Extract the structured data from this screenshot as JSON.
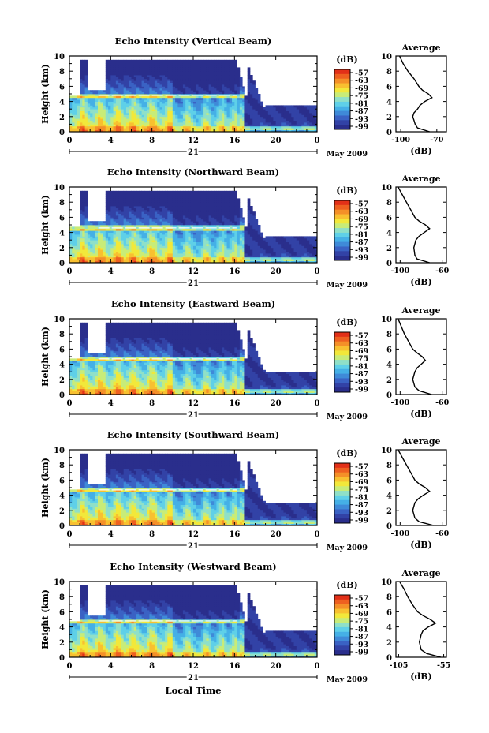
{
  "figure": {
    "xlabel": "Local Time",
    "colorbar_unit": "(dB)",
    "colorbar_ticks": [
      "-57",
      "-63",
      "-69",
      "-75",
      "-81",
      "-87",
      "-93",
      "-99"
    ],
    "colorbar_colors": [
      "#2a2e8c",
      "#3242a6",
      "#3a62c4",
      "#3f8ad8",
      "#45b0e6",
      "#5fd0e8",
      "#8fe0c8",
      "#c8ec78",
      "#f2e83a",
      "#f8c030",
      "#f49028",
      "#ee6020",
      "#e23018"
    ],
    "date_day": "21",
    "date_label": "May 2009",
    "average_title": "Average",
    "average_xlabel": "(dB)"
  },
  "chart_data": [
    {
      "type": "heatmap",
      "title": "Echo Intensity (Vertical Beam)",
      "ylabel": "Height (km)",
      "xticks": [
        "0",
        "4",
        "8",
        "12",
        "16",
        "20",
        "0"
      ],
      "yticks": [
        "0",
        "2",
        "4",
        "6",
        "8",
        "10"
      ],
      "xlim": [
        0,
        24
      ],
      "ylim": [
        0,
        10
      ],
      "colorbar": {
        "unit": "dB",
        "ticks": [
          -57,
          -63,
          -69,
          -75,
          -81,
          -87,
          -93,
          -99
        ]
      },
      "features": {
        "bright_band_km": 4.8,
        "echo_top_km_before_16h": 9.5,
        "echo_top_km_after_17h": 3.5,
        "rain_end_hour": 17
      },
      "average_profile": {
        "xticks": [
          "-100",
          "-70"
        ],
        "xlim": [
          -104,
          -62
        ],
        "points": [
          [
            -76,
            0
          ],
          [
            -86,
            0.5
          ],
          [
            -88,
            1
          ],
          [
            -89,
            1.5
          ],
          [
            -90,
            2
          ],
          [
            -89,
            2.5
          ],
          [
            -86,
            3
          ],
          [
            -84,
            3.5
          ],
          [
            -80,
            4
          ],
          [
            -74,
            4.5
          ],
          [
            -77,
            5
          ],
          [
            -82,
            5.5
          ],
          [
            -85,
            6
          ],
          [
            -89,
            7
          ],
          [
            -94,
            8
          ],
          [
            -98,
            9
          ],
          [
            -101,
            10
          ]
        ]
      }
    },
    {
      "type": "heatmap",
      "title": "Echo Intensity (Northward Beam)",
      "ylabel": "Height (km)",
      "xticks": [
        "0",
        "4",
        "8",
        "12",
        "16",
        "20",
        "0"
      ],
      "yticks": [
        "0",
        "2",
        "4",
        "6",
        "8",
        "10"
      ],
      "xlim": [
        0,
        24
      ],
      "ylim": [
        0,
        10
      ],
      "colorbar": {
        "unit": "dB",
        "ticks": [
          -57,
          -63,
          -69,
          -75,
          -81,
          -87,
          -93,
          -99
        ]
      },
      "features": {
        "bright_band_km": 4.6,
        "echo_top_km_before_16h": 9.5,
        "echo_top_km_after_17h": 3.5,
        "rain_end_hour": 17
      },
      "average_profile": {
        "xticks": [
          "-100",
          "-60"
        ],
        "xlim": [
          -104,
          -56
        ],
        "points": [
          [
            -72,
            0
          ],
          [
            -84,
            0.5
          ],
          [
            -86,
            1
          ],
          [
            -87,
            2
          ],
          [
            -85,
            3
          ],
          [
            -82,
            3.5
          ],
          [
            -77,
            4
          ],
          [
            -72,
            4.5
          ],
          [
            -76,
            5
          ],
          [
            -82,
            5.5
          ],
          [
            -86,
            6
          ],
          [
            -90,
            7
          ],
          [
            -94,
            8
          ],
          [
            -98,
            9
          ],
          [
            -102,
            10
          ]
        ]
      }
    },
    {
      "type": "heatmap",
      "title": "Echo Intensity (Eastward Beam)",
      "ylabel": "Height (km)",
      "xticks": [
        "0",
        "4",
        "8",
        "12",
        "16",
        "20",
        "0"
      ],
      "yticks": [
        "0",
        "2",
        "4",
        "6",
        "8",
        "10"
      ],
      "xlim": [
        0,
        24
      ],
      "ylim": [
        0,
        10
      ],
      "colorbar": {
        "unit": "dB",
        "ticks": [
          -57,
          -63,
          -69,
          -75,
          -81,
          -87,
          -93,
          -99
        ]
      },
      "features": {
        "bright_band_km": 4.7,
        "echo_top_km_before_16h": 9.5,
        "echo_top_km_after_17h": 3.0,
        "rain_end_hour": 17
      },
      "average_profile": {
        "xticks": [
          "-100",
          "-60"
        ],
        "xlim": [
          -104,
          -56
        ],
        "points": [
          [
            -70,
            0
          ],
          [
            -82,
            0.5
          ],
          [
            -86,
            1
          ],
          [
            -88,
            2
          ],
          [
            -86,
            3
          ],
          [
            -84,
            3.5
          ],
          [
            -80,
            4
          ],
          [
            -76,
            4.5
          ],
          [
            -79,
            5
          ],
          [
            -84,
            5.5
          ],
          [
            -88,
            6
          ],
          [
            -92,
            7
          ],
          [
            -96,
            8
          ],
          [
            -99,
            9
          ],
          [
            -102,
            10
          ]
        ]
      }
    },
    {
      "type": "heatmap",
      "title": "Echo Intensity (Southward Beam)",
      "ylabel": "Height (km)",
      "xticks": [
        "0",
        "4",
        "8",
        "12",
        "16",
        "20",
        "0"
      ],
      "yticks": [
        "0",
        "2",
        "4",
        "6",
        "8",
        "10"
      ],
      "xlim": [
        0,
        24
      ],
      "ylim": [
        0,
        10
      ],
      "colorbar": {
        "unit": "dB",
        "ticks": [
          -57,
          -63,
          -69,
          -75,
          -81,
          -87,
          -93,
          -99
        ]
      },
      "features": {
        "bright_band_km": 4.7,
        "echo_top_km_before_16h": 9.5,
        "echo_top_km_after_17h": 3.0,
        "rain_end_hour": 17
      },
      "average_profile": {
        "xticks": [
          "-100",
          "-60"
        ],
        "xlim": [
          -104,
          -56
        ],
        "points": [
          [
            -68,
            0
          ],
          [
            -82,
            0.5
          ],
          [
            -86,
            1
          ],
          [
            -88,
            2
          ],
          [
            -86,
            3
          ],
          [
            -83,
            3.5
          ],
          [
            -78,
            4
          ],
          [
            -72,
            4.5
          ],
          [
            -76,
            5
          ],
          [
            -82,
            5.5
          ],
          [
            -86,
            6
          ],
          [
            -90,
            7
          ],
          [
            -94,
            8
          ],
          [
            -98,
            9
          ],
          [
            -102,
            10
          ]
        ]
      }
    },
    {
      "type": "heatmap",
      "title": "Echo Intensity (Westward Beam)",
      "ylabel": "Height (km)",
      "xticks": [
        "0",
        "4",
        "8",
        "12",
        "16",
        "20",
        "0"
      ],
      "yticks": [
        "0",
        "2",
        "4",
        "6",
        "8",
        "10"
      ],
      "xlim": [
        0,
        24
      ],
      "ylim": [
        0,
        10
      ],
      "colorbar": {
        "unit": "dB",
        "ticks": [
          -57,
          -63,
          -69,
          -75,
          -81,
          -87,
          -93,
          -99
        ]
      },
      "features": {
        "bright_band_km": 4.8,
        "echo_top_km_before_16h": 9.5,
        "echo_top_km_after_17h": 3.5,
        "rain_end_hour": 17
      },
      "average_profile": {
        "xticks": [
          "-105",
          "-55"
        ],
        "xlim": [
          -108,
          -52
        ],
        "points": [
          [
            -58,
            0
          ],
          [
            -74,
            0.5
          ],
          [
            -80,
            1
          ],
          [
            -82,
            2
          ],
          [
            -80,
            3
          ],
          [
            -78,
            3.5
          ],
          [
            -72,
            4
          ],
          [
            -64,
            4.5
          ],
          [
            -70,
            5
          ],
          [
            -78,
            5.5
          ],
          [
            -84,
            6
          ],
          [
            -90,
            7
          ],
          [
            -95,
            8
          ],
          [
            -99,
            9
          ],
          [
            -104,
            10
          ]
        ]
      }
    }
  ]
}
